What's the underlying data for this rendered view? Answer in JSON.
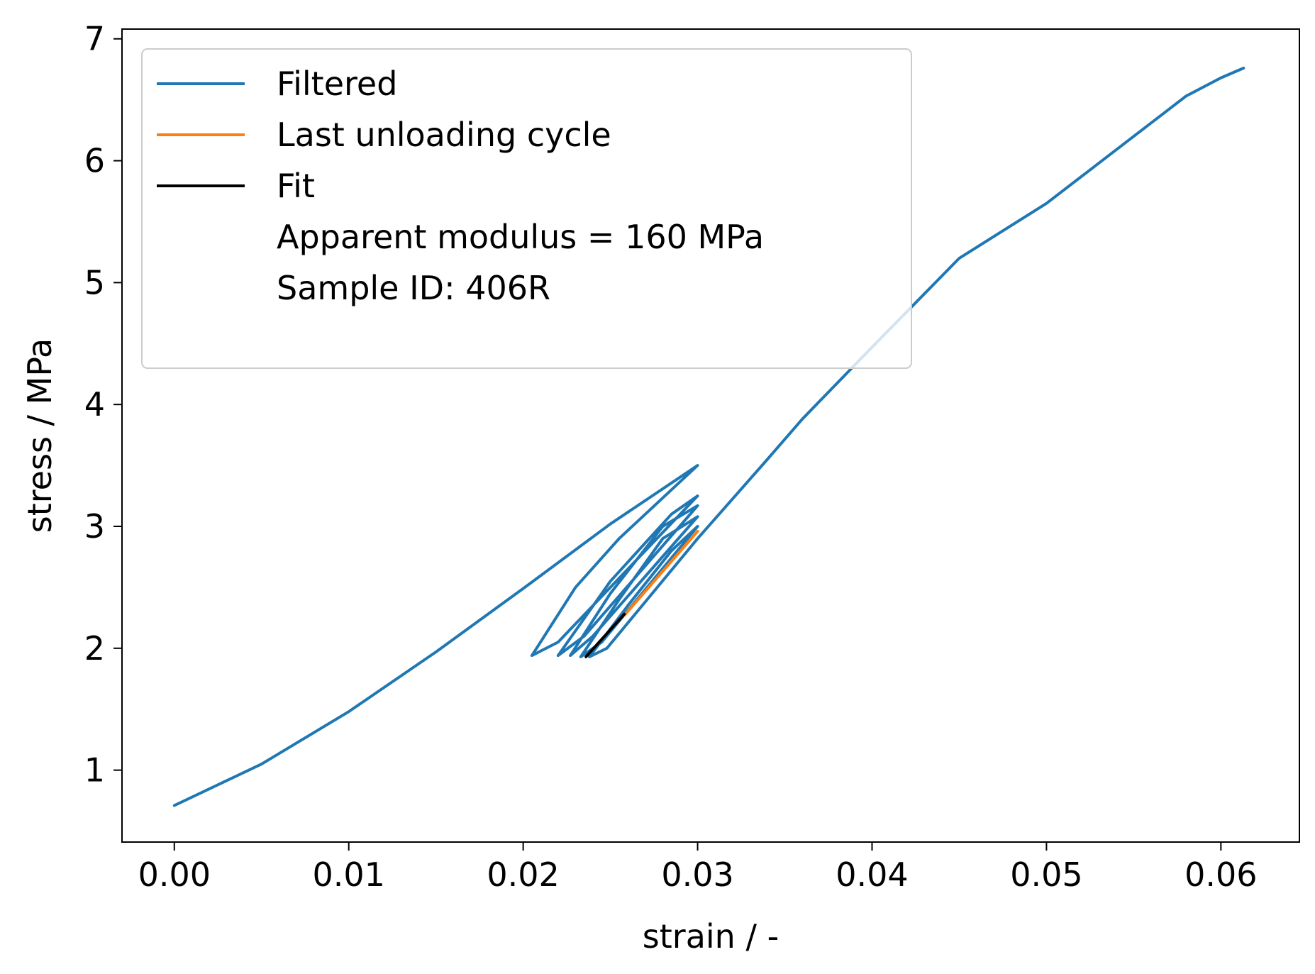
{
  "chart_data": {
    "type": "line",
    "xlabel": "strain / -",
    "ylabel": "stress / MPa",
    "xlim": [
      -0.003,
      0.0645
    ],
    "ylim": [
      0.41,
      7.08
    ],
    "xticks": [
      {
        "value": 0.0,
        "label": "0.00"
      },
      {
        "value": 0.01,
        "label": "0.01"
      },
      {
        "value": 0.02,
        "label": "0.02"
      },
      {
        "value": 0.03,
        "label": "0.03"
      },
      {
        "value": 0.04,
        "label": "0.04"
      },
      {
        "value": 0.05,
        "label": "0.05"
      },
      {
        "value": 0.06,
        "label": "0.06"
      }
    ],
    "yticks": [
      {
        "value": 1,
        "label": "1"
      },
      {
        "value": 2,
        "label": "2"
      },
      {
        "value": 3,
        "label": "3"
      },
      {
        "value": 4,
        "label": "4"
      },
      {
        "value": 5,
        "label": "5"
      },
      {
        "value": 6,
        "label": "6"
      },
      {
        "value": 7,
        "label": "7"
      }
    ],
    "grid": false,
    "legend_position": "top-left",
    "legend": [
      {
        "label": "Filtered",
        "color": "#1f77b4",
        "marker": "line"
      },
      {
        "label": "Last unloading cycle",
        "color": "#ff7f0e",
        "marker": "line"
      },
      {
        "label": "Fit",
        "color": "#000000",
        "marker": "line"
      },
      {
        "label": "Apparent modulus = 160 MPa",
        "color": "",
        "marker": "none"
      },
      {
        "label": "Sample ID: 406R",
        "color": "",
        "marker": "none"
      }
    ],
    "series": [
      {
        "name": "Filtered",
        "color": "#1f77b4",
        "style": "line",
        "points": [
          [
            0.0,
            0.71
          ],
          [
            0.005,
            1.05
          ],
          [
            0.01,
            1.48
          ],
          [
            0.015,
            1.97
          ],
          [
            0.02,
            2.49
          ],
          [
            0.025,
            3.02
          ],
          [
            0.03,
            3.5
          ],
          [
            0.0255,
            2.9
          ],
          [
            0.023,
            2.5
          ],
          [
            0.0205,
            1.94
          ],
          [
            0.022,
            2.05
          ],
          [
            0.03,
            3.25
          ],
          [
            0.0285,
            3.1
          ],
          [
            0.025,
            2.55
          ],
          [
            0.022,
            1.94
          ],
          [
            0.0235,
            2.1
          ],
          [
            0.03,
            3.17
          ],
          [
            0.028,
            3.0
          ],
          [
            0.025,
            2.45
          ],
          [
            0.0227,
            1.94
          ],
          [
            0.024,
            2.1
          ],
          [
            0.03,
            3.08
          ],
          [
            0.028,
            2.9
          ],
          [
            0.0255,
            2.4
          ],
          [
            0.0233,
            1.93
          ],
          [
            0.0245,
            2.05
          ],
          [
            0.03,
            3.0
          ],
          [
            0.0285,
            2.8
          ],
          [
            0.026,
            2.35
          ],
          [
            0.0238,
            1.93
          ],
          [
            0.0248,
            2.0
          ],
          [
            0.03,
            2.9
          ],
          [
            0.034,
            3.55
          ],
          [
            0.036,
            3.88
          ],
          [
            0.04,
            4.47
          ],
          [
            0.045,
            5.2
          ],
          [
            0.05,
            5.65
          ],
          [
            0.055,
            6.2
          ],
          [
            0.058,
            6.53
          ],
          [
            0.06,
            6.68
          ],
          [
            0.0613,
            6.76
          ]
        ]
      },
      {
        "name": "Last unloading cycle",
        "color": "#ff7f0e",
        "style": "line",
        "points": [
          [
            0.0258,
            2.27
          ],
          [
            0.03,
            2.96
          ]
        ]
      },
      {
        "name": "Fit",
        "color": "#000000",
        "style": "line",
        "points": [
          [
            0.0236,
            1.93
          ],
          [
            0.0258,
            2.28
          ]
        ]
      }
    ]
  }
}
